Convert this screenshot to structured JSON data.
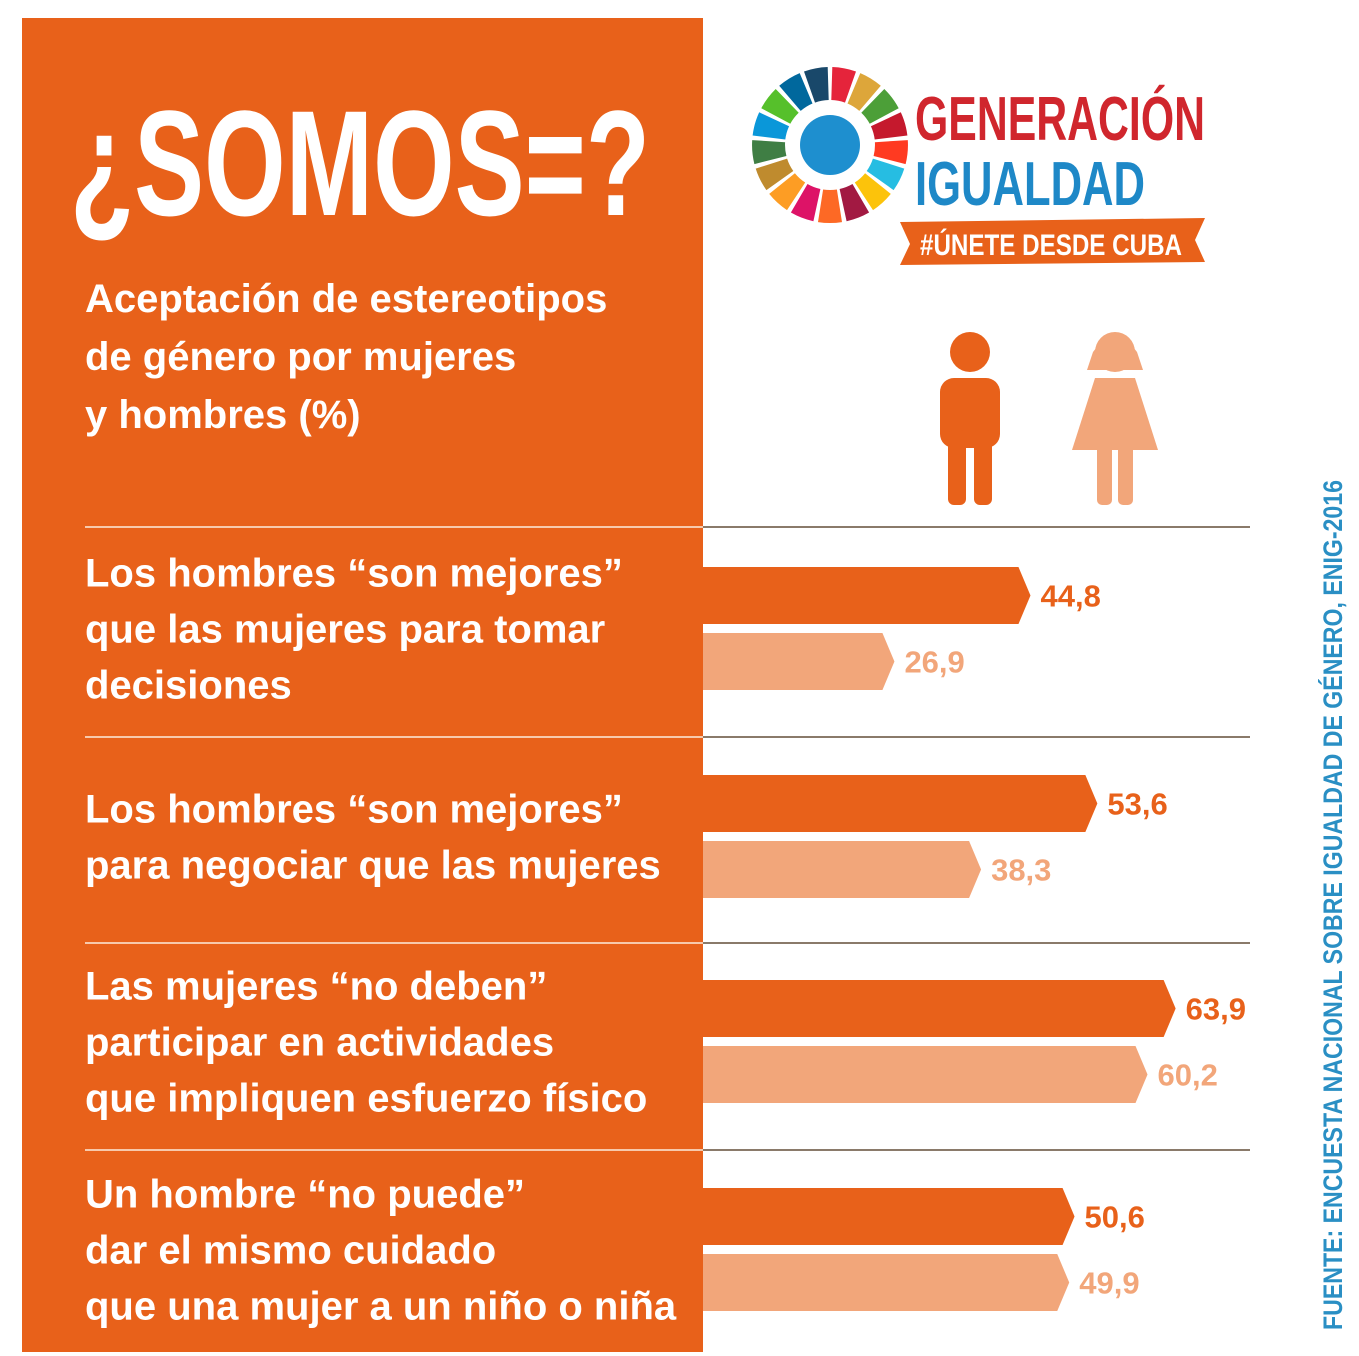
{
  "logo": {
    "line1": "GENERACIÓN",
    "line2": "IGUALDAD",
    "tag": "#ÚNETE DESDE CUBA"
  },
  "source": "FUENTE: ENCUESTA NACIONAL SOBRE IGUALDAD DE GÉNERO, ENIG-2016",
  "chart_data": {
    "type": "bar",
    "orientation": "horizontal",
    "title": "¿SOMOS=?",
    "subtitle": [
      "Aceptación de estereotipos",
      "de género por mujeres",
      "y hombres (%)"
    ],
    "categories": [
      [
        "Los hombres “son mejores”",
        "que las mujeres para tomar",
        "decisiones"
      ],
      [
        "Los hombres “son mejores”",
        "para negociar que las mujeres"
      ],
      [
        "Las mujeres “no deben”",
        "participar en actividades",
        "que impliquen esfuerzo físico"
      ],
      [
        "Un hombre “no puede”",
        "dar el mismo cuidado",
        "que una mujer a un niño o niña"
      ]
    ],
    "series": [
      {
        "color": "#e8611a",
        "values": [
          44.8,
          53.6,
          63.9,
          50.6
        ],
        "value_labels": [
          "44,8",
          "53,6",
          "63,9",
          "50,6"
        ]
      },
      {
        "color": "#f2a67a",
        "values": [
          26.9,
          38.3,
          60.2,
          49.9
        ],
        "value_labels": [
          "26,9",
          "38,3",
          "60,2",
          "49,9"
        ]
      }
    ]
  }
}
